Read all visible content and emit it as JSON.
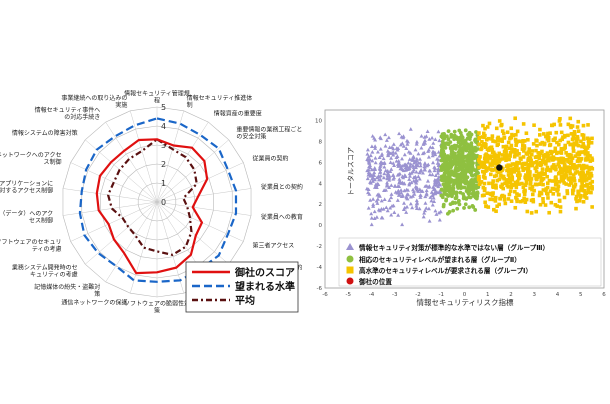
{
  "colors": {
    "own": "#e01010",
    "desired": "#1a66c8",
    "average": "#5a1010",
    "group3": "#9a92d0",
    "group2": "#8fc040",
    "group1": "#f5c400",
    "position": "#d01010"
  },
  "chart_data": [
    {
      "type": "radar",
      "title": "",
      "rlim": [
        0,
        5
      ],
      "tick_labels": [
        "0",
        "1",
        "2",
        "3",
        "4",
        "5"
      ],
      "categories": [
        "情報セキュリティ管理規程",
        "情報セキュリティ推進体制",
        "情報資産の重要度",
        "重要情報の業務工程ごとの安全対策",
        "従業員の契約",
        "従業員との契約",
        "従業員への教育",
        "第三者アクセス",
        "建物や安全区画の物理的な保護",
        "情報システム",
        "不正ソフトウェア対策",
        "ソフトウェアの脆弱性対策",
        "通信ネットワークの保護",
        "記憶媒体の紛失・盗難対策",
        "業務システム開発時のセキュリティの考慮",
        "ソフトウェアのセキュリティの考慮",
        "情報（データ）へのアクセス制御",
        "業務アプリケーションに対するアクセス制御",
        "ネットワークへのアクセス制御",
        "情報システムの障害対策",
        "情報セキュリティ事件への対応手続き",
        "事業継続への取り込みの実施"
      ],
      "series": [
        {
          "name": "御社のスコア",
          "values": [
            3.3,
            3.1,
            3.4,
            3.3,
            2.9,
            2.2,
            1.9,
            2.6,
            2.7,
            3.3,
            3.6,
            3.7,
            3.9,
            3.2,
            3.0,
            2.8,
            3.1,
            3.2,
            3.3,
            3.2,
            3.2,
            3.4
          ],
          "color": "#e01010"
        },
        {
          "name": "望まれる水準",
          "values": [
            4.4,
            4.3,
            4.2,
            4.3,
            4.1,
            4.2,
            4.2,
            4.1,
            4.3,
            4.2,
            4.3,
            4.2,
            4.3,
            4.0,
            4.1,
            4.2,
            4.1,
            4.0,
            4.1,
            4.2,
            4.1,
            4.2
          ],
          "color": "#1a66c8"
        },
        {
          "name": "平均",
          "values": [
            3.3,
            2.9,
            2.8,
            2.6,
            2.3,
            1.4,
            1.6,
            1.9,
            2.4,
            2.8,
            2.9,
            2.6,
            2.5,
            2.1,
            2.0,
            2.0,
            2.4,
            2.6,
            2.5,
            2.6,
            2.7,
            2.8
          ],
          "color": "#5a1010"
        }
      ]
    },
    {
      "type": "scatter",
      "title": "",
      "xlabel": "情報セキュリティリスク指標",
      "ylabel": "トータルスコア",
      "xlim": [
        -6,
        6
      ],
      "ylim": [
        -6,
        11
      ],
      "x_ticks": [
        "-6",
        "-5",
        "-4",
        "-3",
        "-2",
        "-1",
        "0",
        "1",
        "2",
        "3",
        "4",
        "5",
        "6"
      ],
      "y_ticks": [
        "10",
        "8",
        "6",
        "4",
        "2",
        "0",
        "-2",
        "-4",
        "-6"
      ],
      "legend_position": "bottom",
      "series": [
        {
          "name": "情報セキュリティ対策が標準的な水準ではない層（グループⅢ）",
          "marker": "triangle",
          "color": "#9a92d0",
          "x_range": [
            -4.2,
            -1.0
          ],
          "y_range": [
            0,
            9.5
          ],
          "count": 450
        },
        {
          "name": "相応のセキュリティレベルが望まれる層（グループⅡ）",
          "marker": "circle",
          "color": "#8fc040",
          "x_range": [
            -1.0,
            0.6
          ],
          "y_range": [
            1,
            9.5
          ],
          "count": 550
        },
        {
          "name": "高水準のセキュリティレベルが要求される層（グループⅠ）",
          "marker": "square",
          "color": "#f5c400",
          "x_range": [
            0.6,
            5.5
          ],
          "y_range": [
            1,
            10.5
          ],
          "count": 800
        }
      ],
      "position": {
        "name": "御社の位置",
        "x": 1.5,
        "y": 5.5,
        "color": "#d01010"
      }
    }
  ]
}
